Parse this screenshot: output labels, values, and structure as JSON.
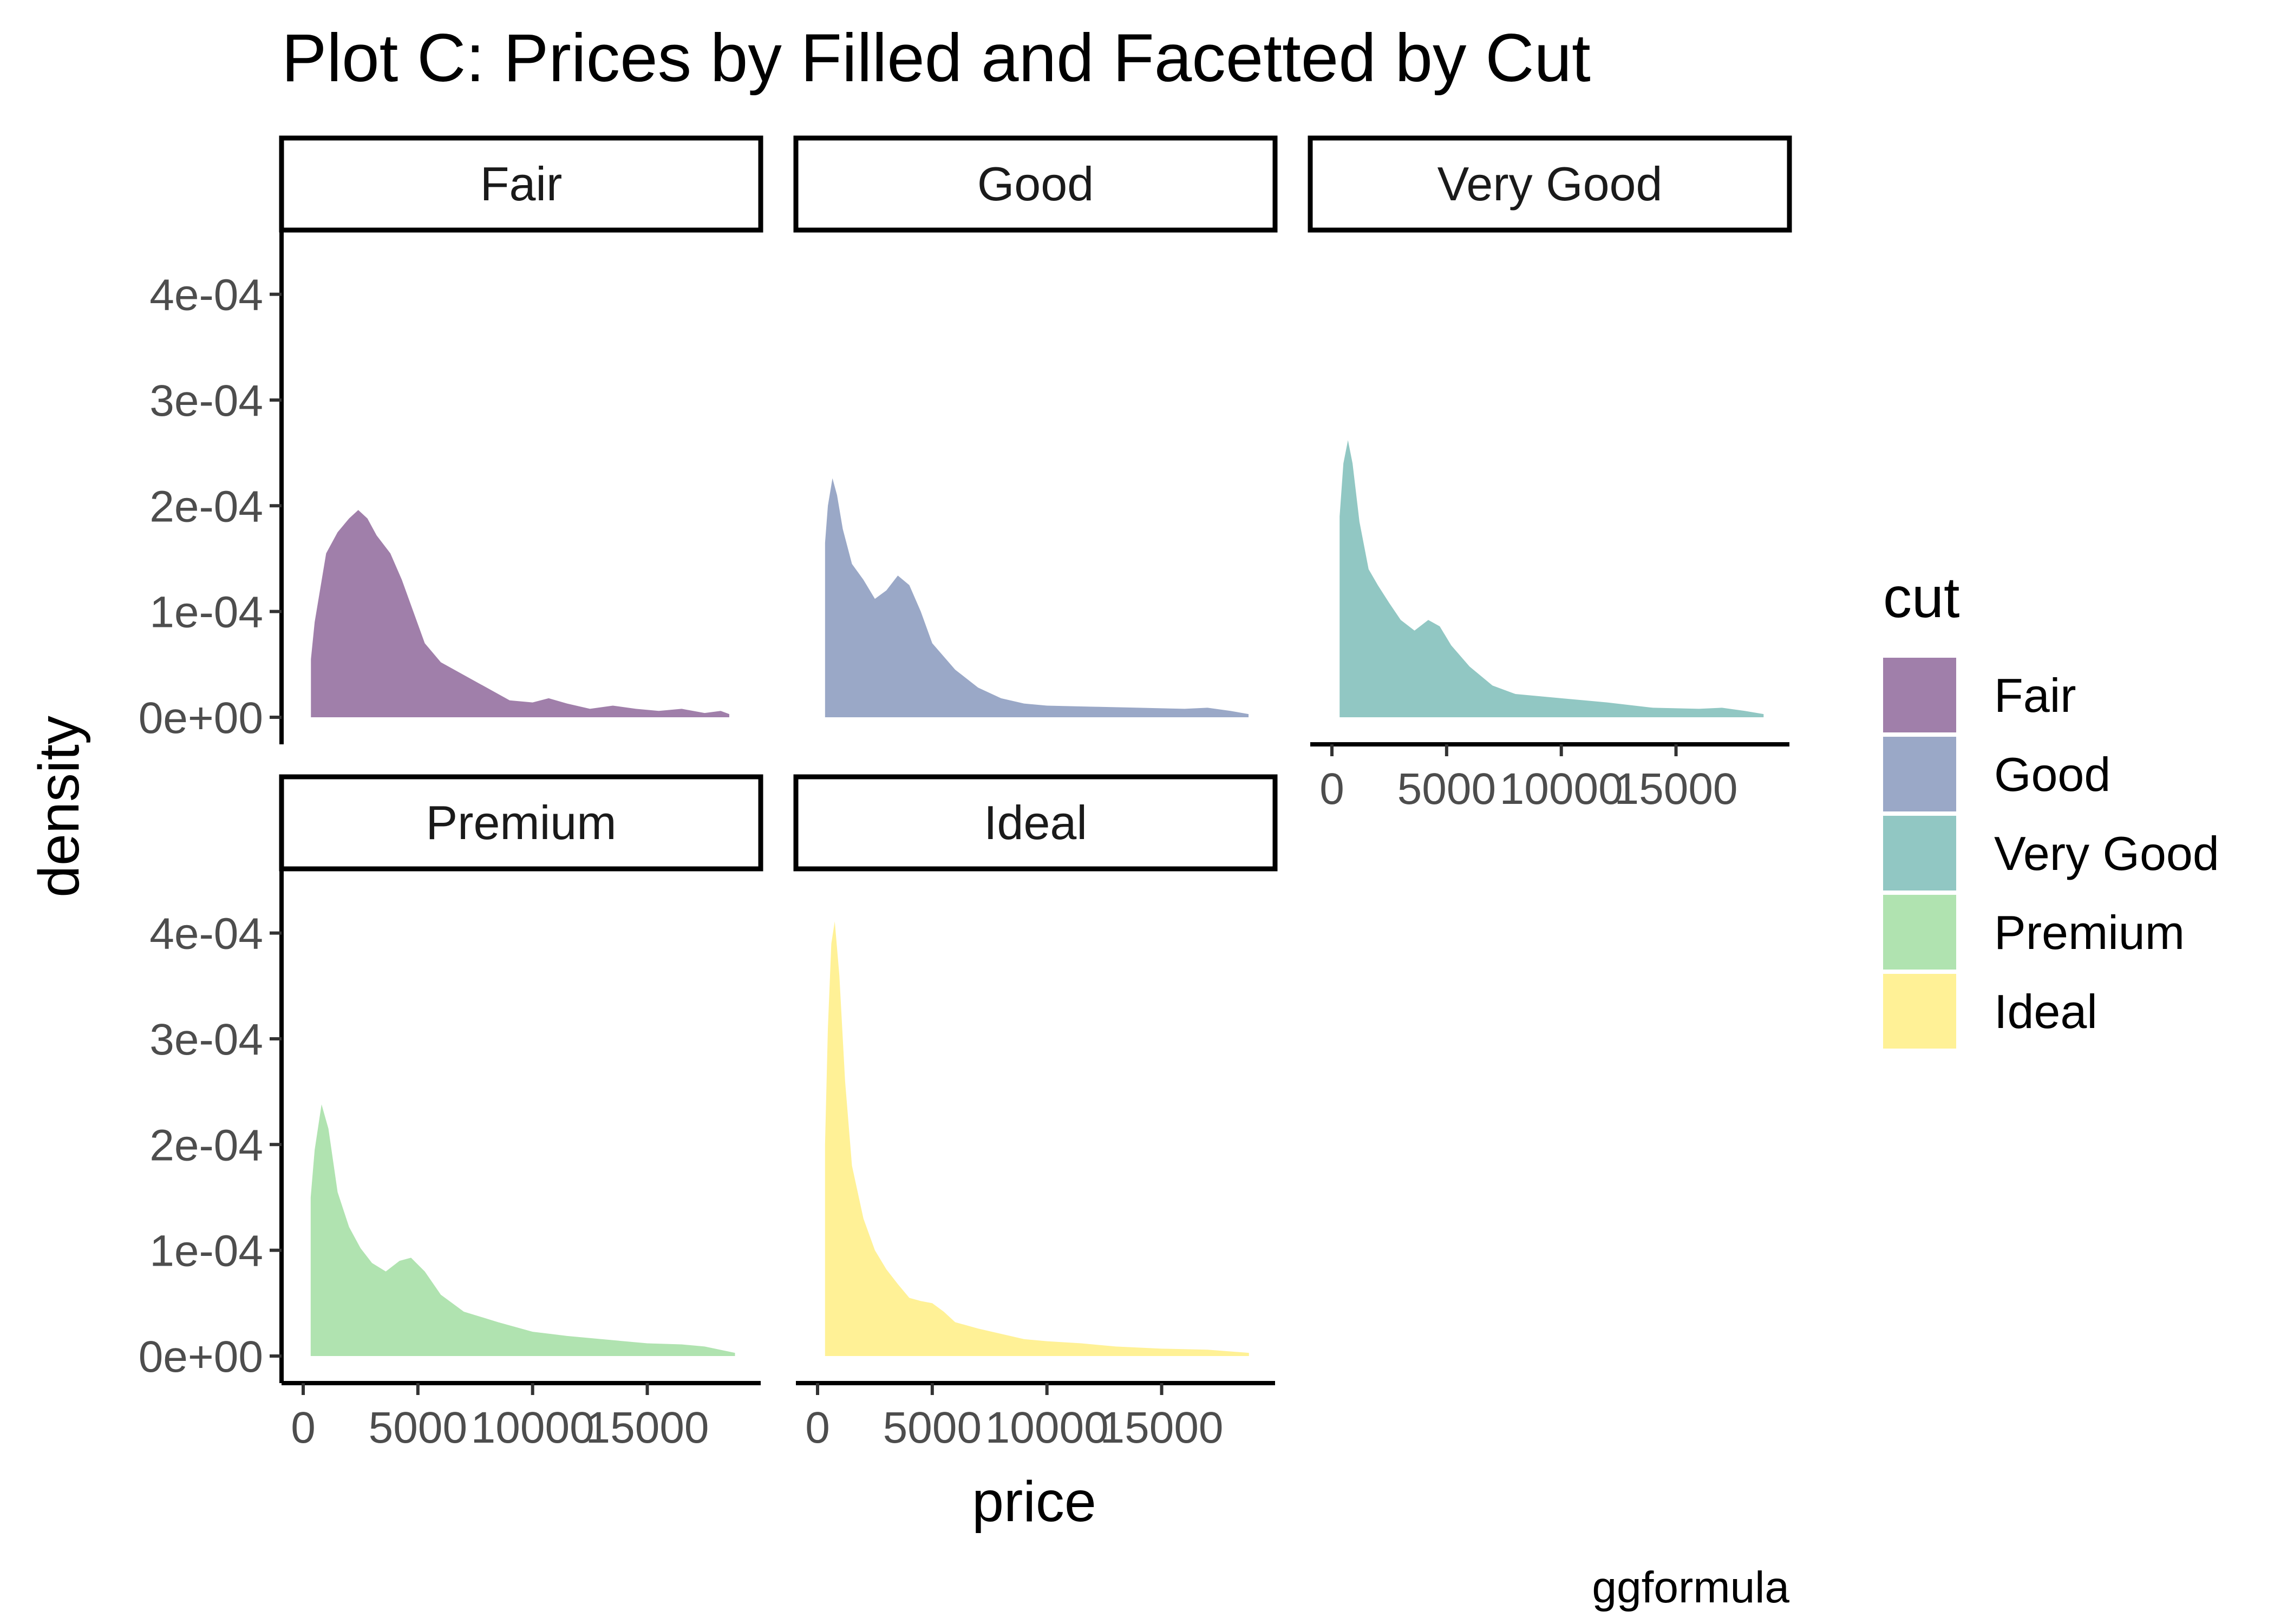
{
  "chart_data": {
    "type": "area",
    "title": "Plot C: Prices by Filled and Facetted by Cut",
    "xlabel": "price",
    "ylabel": "density",
    "caption": "ggformula",
    "legend": {
      "title": "cut",
      "position": "right"
    },
    "xlim": [
      0,
      19000
    ],
    "ylim": [
      0,
      0.00043
    ],
    "x_ticks": [
      0,
      5000,
      10000,
      15000
    ],
    "x_tick_labels": [
      "0",
      "5000",
      "10000",
      "15000"
    ],
    "y_ticks": [
      0,
      0.0001,
      0.0002,
      0.0003,
      0.0004
    ],
    "y_tick_labels": [
      "0e+00",
      "1e-04",
      "2e-04",
      "3e-04",
      "4e-04"
    ],
    "grid": false,
    "facets": [
      "Fair",
      "Good",
      "Very Good",
      "Premium",
      "Ideal"
    ],
    "series": [
      {
        "name": "Fair",
        "color": "#a07faa",
        "points": [
          [
            337,
            5.5e-05
          ],
          [
            500,
            9e-05
          ],
          [
            1000,
            0.000155
          ],
          [
            1500,
            0.000175
          ],
          [
            2000,
            0.000188
          ],
          [
            2400,
            0.000196
          ],
          [
            2800,
            0.000188
          ],
          [
            3200,
            0.000172
          ],
          [
            3800,
            0.000155
          ],
          [
            4300,
            0.00013
          ],
          [
            4800,
            0.0001
          ],
          [
            5300,
            7e-05
          ],
          [
            6000,
            5.2e-05
          ],
          [
            7000,
            4e-05
          ],
          [
            8000,
            2.8e-05
          ],
          [
            9000,
            1.6e-05
          ],
          [
            10000,
            1.4e-05
          ],
          [
            10700,
            1.8e-05
          ],
          [
            11500,
            1.3e-05
          ],
          [
            12500,
            8e-06
          ],
          [
            13500,
            1.1e-05
          ],
          [
            14500,
            8e-06
          ],
          [
            15500,
            6e-06
          ],
          [
            16500,
            8e-06
          ],
          [
            17500,
            4e-06
          ],
          [
            18200,
            6e-06
          ],
          [
            18574,
            3e-06
          ]
        ]
      },
      {
        "name": "Good",
        "color": "#9aa8c7",
        "points": [
          [
            327,
            0.000165
          ],
          [
            450,
            0.0002
          ],
          [
            650,
            0.000226
          ],
          [
            850,
            0.00021
          ],
          [
            1100,
            0.000178
          ],
          [
            1500,
            0.000145
          ],
          [
            2000,
            0.00013
          ],
          [
            2500,
            0.000112
          ],
          [
            3000,
            0.00012
          ],
          [
            3500,
            0.000134
          ],
          [
            4000,
            0.000125
          ],
          [
            4500,
            0.0001
          ],
          [
            5000,
            7e-05
          ],
          [
            6000,
            4.5e-05
          ],
          [
            7000,
            2.8e-05
          ],
          [
            8000,
            1.8e-05
          ],
          [
            9000,
            1.3e-05
          ],
          [
            10000,
            1.1e-05
          ],
          [
            12000,
            1e-05
          ],
          [
            14000,
            9e-06
          ],
          [
            16000,
            8e-06
          ],
          [
            17000,
            9e-06
          ],
          [
            18000,
            6e-06
          ],
          [
            18788,
            3e-06
          ]
        ]
      },
      {
        "name": "Very Good",
        "color": "#91c7c3",
        "points": [
          [
            336,
            0.00019
          ],
          [
            500,
            0.00024
          ],
          [
            700,
            0.000262
          ],
          [
            900,
            0.00024
          ],
          [
            1200,
            0.000185
          ],
          [
            1600,
            0.00014
          ],
          [
            2000,
            0.000125
          ],
          [
            2500,
            0.000108
          ],
          [
            3000,
            9.2e-05
          ],
          [
            3600,
            8.2e-05
          ],
          [
            4200,
            9.2e-05
          ],
          [
            4700,
            8.6e-05
          ],
          [
            5200,
            6.8e-05
          ],
          [
            6000,
            4.8e-05
          ],
          [
            7000,
            3e-05
          ],
          [
            8000,
            2.2e-05
          ],
          [
            10000,
            1.8e-05
          ],
          [
            12000,
            1.4e-05
          ],
          [
            14000,
            9e-06
          ],
          [
            16000,
            8e-06
          ],
          [
            17000,
            9e-06
          ],
          [
            18000,
            6e-06
          ],
          [
            18818,
            3e-06
          ]
        ]
      },
      {
        "name": "Premium",
        "color": "#b0e3b0",
        "points": [
          [
            326,
            0.00015
          ],
          [
            500,
            0.000195
          ],
          [
            800,
            0.000238
          ],
          [
            1100,
            0.000215
          ],
          [
            1500,
            0.000155
          ],
          [
            2000,
            0.000122
          ],
          [
            2500,
            0.000102
          ],
          [
            3000,
            8.8e-05
          ],
          [
            3600,
            8e-05
          ],
          [
            4200,
            9e-05
          ],
          [
            4700,
            9.3e-05
          ],
          [
            5300,
            8e-05
          ],
          [
            6000,
            5.8e-05
          ],
          [
            7000,
            4.2e-05
          ],
          [
            8500,
            3.2e-05
          ],
          [
            10000,
            2.3e-05
          ],
          [
            11500,
            1.9e-05
          ],
          [
            13000,
            1.6e-05
          ],
          [
            15000,
            1.2e-05
          ],
          [
            16500,
            1.1e-05
          ],
          [
            17500,
            9e-06
          ],
          [
            18823,
            3e-06
          ]
        ]
      },
      {
        "name": "Ideal",
        "color": "#fff196",
        "points": [
          [
            326,
            0.0002
          ],
          [
            450,
            0.00031
          ],
          [
            600,
            0.00039
          ],
          [
            750,
            0.000411
          ],
          [
            950,
            0.00036
          ],
          [
            1200,
            0.00026
          ],
          [
            1500,
            0.00018
          ],
          [
            2000,
            0.00013
          ],
          [
            2500,
            0.0001
          ],
          [
            3000,
            8.2e-05
          ],
          [
            3500,
            6.8e-05
          ],
          [
            4000,
            5.5e-05
          ],
          [
            4500,
            5.2e-05
          ],
          [
            5000,
            5e-05
          ],
          [
            5500,
            4.2e-05
          ],
          [
            6000,
            3.2e-05
          ],
          [
            7000,
            2.6e-05
          ],
          [
            8000,
            2.1e-05
          ],
          [
            9000,
            1.6e-05
          ],
          [
            10000,
            1.4e-05
          ],
          [
            11500,
            1.2e-05
          ],
          [
            13000,
            9e-06
          ],
          [
            15000,
            7e-06
          ],
          [
            17000,
            6e-06
          ],
          [
            18806,
            3e-06
          ]
        ]
      }
    ]
  }
}
